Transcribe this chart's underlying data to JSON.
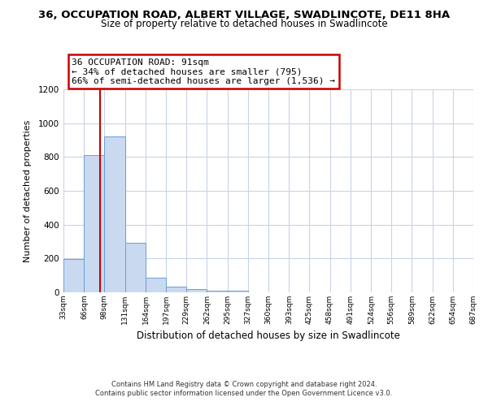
{
  "title": "36, OCCUPATION ROAD, ALBERT VILLAGE, SWADLINCOTE, DE11 8HA",
  "subtitle": "Size of property relative to detached houses in Swadlincote",
  "xlabel": "Distribution of detached houses by size in Swadlincote",
  "ylabel": "Number of detached properties",
  "bin_edges": [
    33,
    66,
    98,
    131,
    164,
    197,
    229,
    262,
    295,
    327,
    360,
    393,
    425,
    458,
    491,
    524,
    556,
    589,
    622,
    654,
    687
  ],
  "bin_labels": [
    "33sqm",
    "66sqm",
    "98sqm",
    "131sqm",
    "164sqm",
    "197sqm",
    "229sqm",
    "262sqm",
    "295sqm",
    "327sqm",
    "360sqm",
    "393sqm",
    "425sqm",
    "458sqm",
    "491sqm",
    "524sqm",
    "556sqm",
    "589sqm",
    "622sqm",
    "654sqm",
    "687sqm"
  ],
  "bar_heights": [
    195,
    810,
    920,
    295,
    88,
    35,
    18,
    10,
    8,
    0,
    0,
    0,
    0,
    0,
    0,
    0,
    0,
    0,
    0,
    0
  ],
  "bar_color": "#c9d9f0",
  "bar_edge_color": "#6a9fd8",
  "property_line_x": 91,
  "property_line_color": "#cc0000",
  "ylim": [
    0,
    1200
  ],
  "yticks": [
    0,
    200,
    400,
    600,
    800,
    1000,
    1200
  ],
  "annotation_title": "36 OCCUPATION ROAD: 91sqm",
  "annotation_line1": "← 34% of detached houses are smaller (795)",
  "annotation_line2": "66% of semi-detached houses are larger (1,536) →",
  "annotation_box_color": "#ffffff",
  "annotation_box_edge_color": "#cc0000",
  "footer_line1": "Contains HM Land Registry data © Crown copyright and database right 2024.",
  "footer_line2": "Contains public sector information licensed under the Open Government Licence v3.0.",
  "background_color": "#ffffff",
  "grid_color": "#c8d4e8",
  "title_fontsize": 9.5,
  "subtitle_fontsize": 8.5
}
